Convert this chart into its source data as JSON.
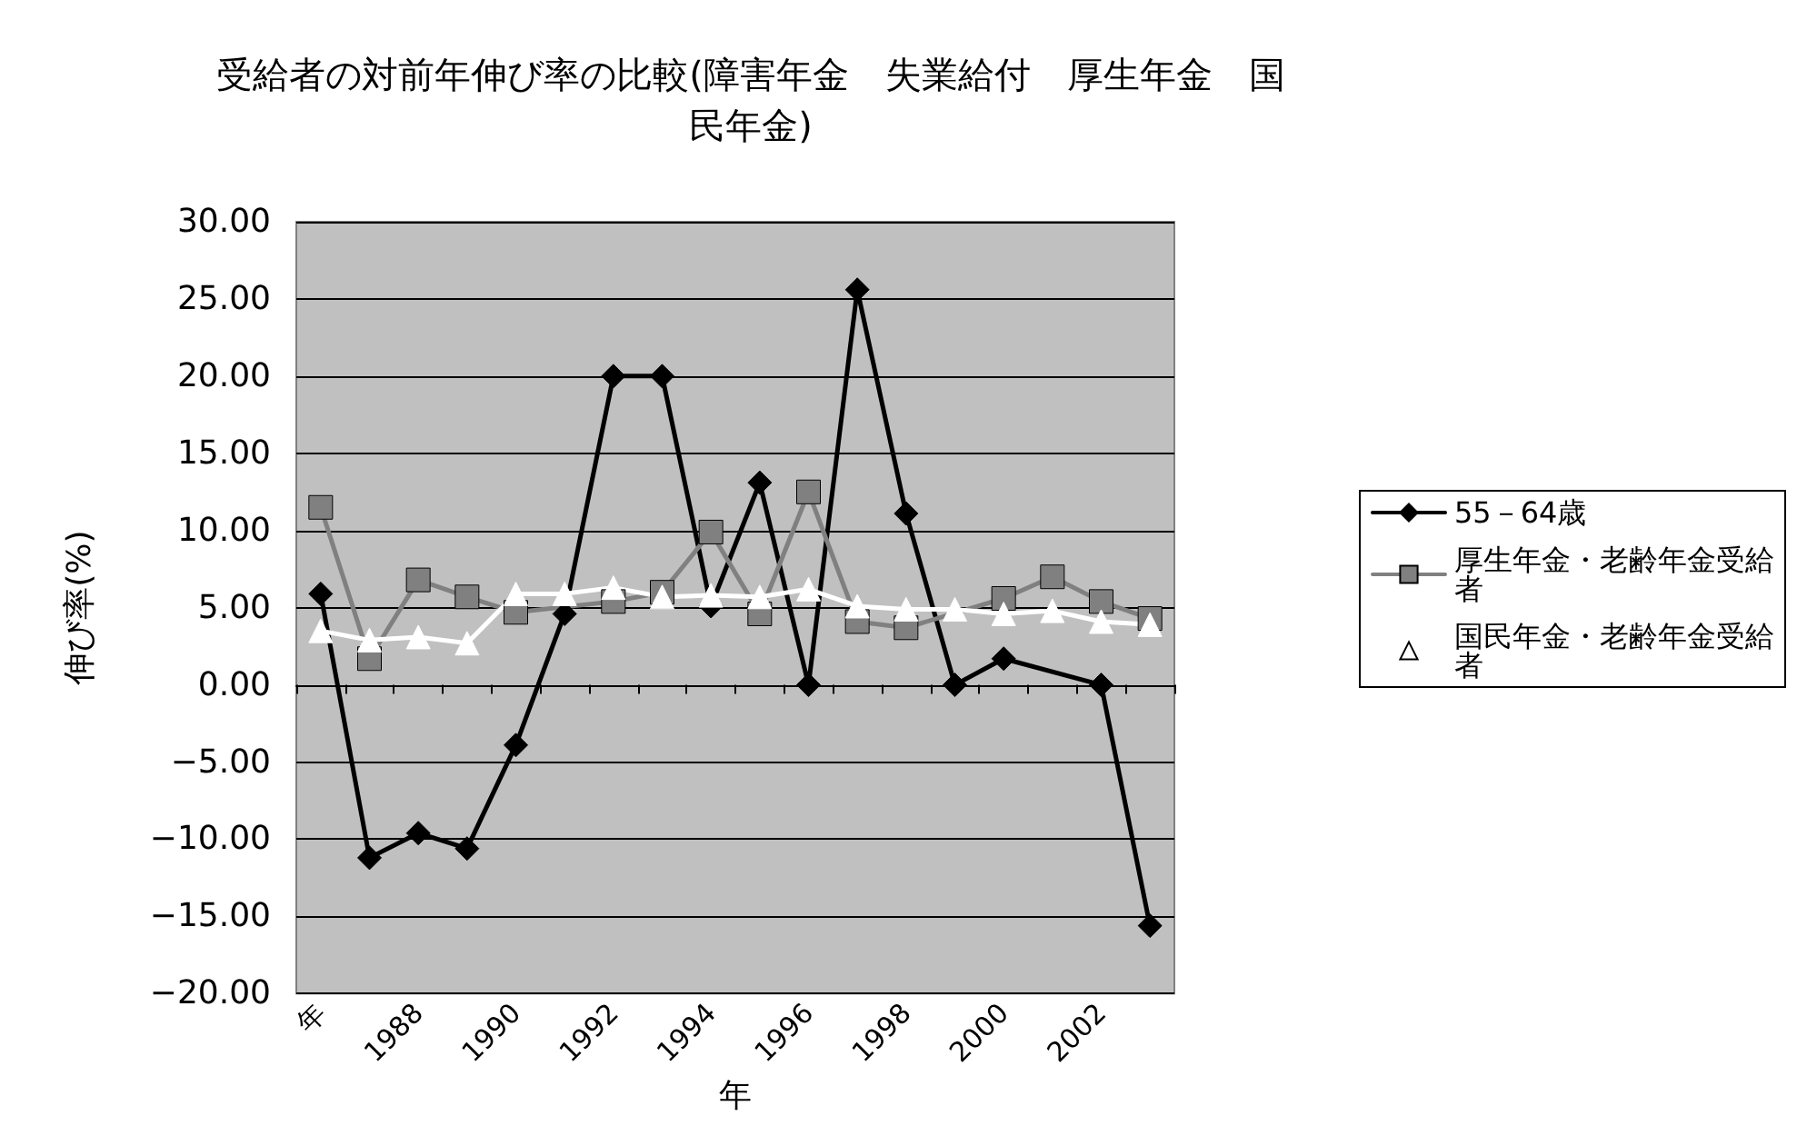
{
  "chart_data": {
    "type": "line",
    "title": "受給者の対前年伸び率の比較(障害年金　失業給付　厚生年金　国民年金)",
    "xlabel": "年",
    "ylabel": "伸び率(%)",
    "categories": [
      "年",
      null,
      "1988",
      null,
      "1990",
      null,
      "1992",
      null,
      "1994",
      null,
      "1996",
      null,
      "1998",
      null,
      "2000",
      null,
      "2002",
      null
    ],
    "series": [
      {
        "name": "55－64歳",
        "color": "#000000",
        "marker": "diamond",
        "values": [
          5.9,
          -11.2,
          -9.6,
          -10.6,
          -3.9,
          4.6,
          20,
          20,
          5.1,
          13.1,
          0,
          25.6,
          11.1,
          0,
          1.7,
          null,
          0,
          -15.6
        ]
      },
      {
        "name": "厚生年金・老齢年金受給者",
        "color": "#808080",
        "marker": "square",
        "values": [
          11.5,
          1.7,
          6.8,
          5.7,
          4.7,
          null,
          5.4,
          6.0,
          9.9,
          4.6,
          12.5,
          4.1,
          3.7,
          null,
          5.6,
          7.0,
          5.4,
          4.3
        ]
      },
      {
        "name": "国民年金・老齢年金受給者",
        "color": "#ffffff",
        "marker": "triangle",
        "values": [
          3.5,
          2.9,
          3.1,
          2.7,
          5.9,
          5.9,
          6.3,
          5.7,
          5.8,
          5.7,
          6.2,
          5.1,
          4.9,
          4.9,
          4.6,
          4.8,
          4.1,
          3.9
        ]
      }
    ],
    "ylim": [
      -20,
      30
    ],
    "yticks": [
      {
        "value": -20,
        "label": "−20.00"
      },
      {
        "value": -15,
        "label": "−15.00"
      },
      {
        "value": -10,
        "label": "−10.00"
      },
      {
        "value": -5,
        "label": "−5.00"
      },
      {
        "value": 0,
        "label": "0.00"
      },
      {
        "value": 5,
        "label": "5.00"
      },
      {
        "value": 10,
        "label": "10.00"
      },
      {
        "value": 15,
        "label": "15.00"
      },
      {
        "value": 20,
        "label": "20.00"
      },
      {
        "value": 25,
        "label": "25.00"
      },
      {
        "value": 30,
        "label": "30.00"
      }
    ],
    "grid": "y",
    "legend": "right",
    "line_style": "solid"
  }
}
